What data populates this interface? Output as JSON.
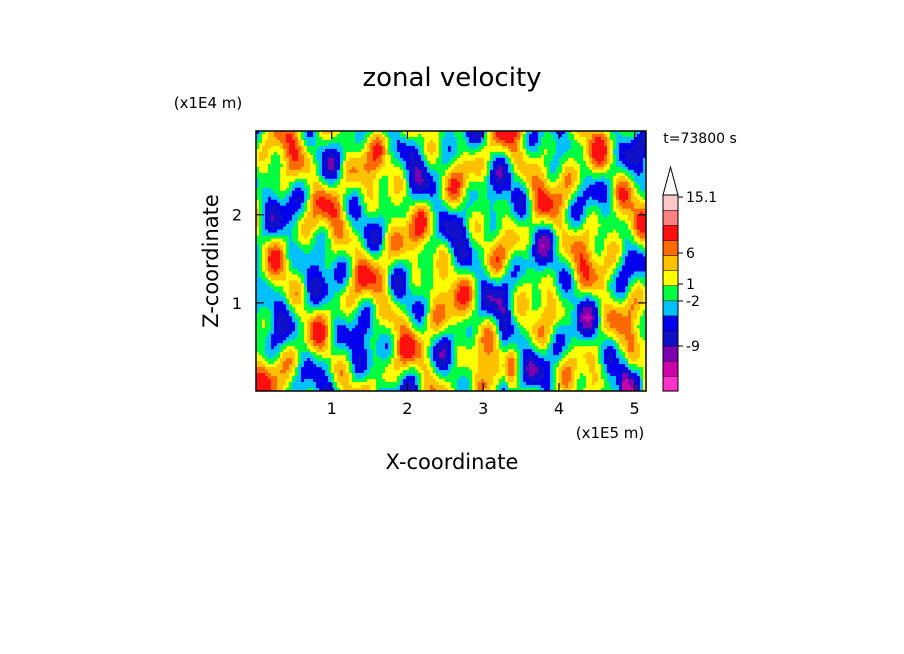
{
  "chart_data": {
    "type": "heatmap",
    "title": "zonal velocity",
    "time_label": "t=73800 s",
    "xlabel": "X-coordinate",
    "ylabel": "Z-coordinate",
    "x_unit": "(x1E5 m)",
    "y_unit": "(x1E4 m)",
    "xlim": [
      0,
      5.15
    ],
    "ylim": [
      0,
      2.95
    ],
    "x_ticks": [
      "1",
      "2",
      "3",
      "4",
      "5"
    ],
    "y_ticks": [
      "1",
      "2"
    ],
    "colorbar": {
      "labels": [
        "15.1",
        "6",
        "1",
        "-2",
        "-9"
      ],
      "colors": [
        "#ff33cc",
        "#cc00aa",
        "#7a00b0",
        "#1010c8",
        "#0000ee",
        "#00c0ff",
        "#00ff40",
        "#ffff00",
        "#ffc000",
        "#ff6a00",
        "#ff1010",
        "#ff8080",
        "#ffc8c8",
        "#ffffff"
      ]
    }
  }
}
